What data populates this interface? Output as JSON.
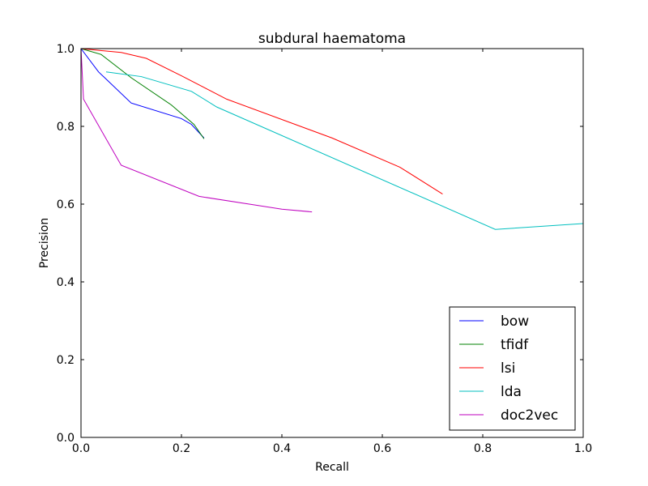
{
  "chart_data": {
    "type": "line",
    "title": "subdural haematoma",
    "xlabel": "Recall",
    "ylabel": "Precision",
    "xlim": [
      0.0,
      1.0
    ],
    "ylim": [
      0.0,
      1.0
    ],
    "xticks": [
      "0.0",
      "0.2",
      "0.4",
      "0.6",
      "0.8",
      "1.0"
    ],
    "yticks": [
      "0.0",
      "0.2",
      "0.4",
      "0.6",
      "0.8",
      "1.0"
    ],
    "grid": false,
    "legend_position": "lower-right",
    "series": [
      {
        "name": "bow",
        "color": "#0000ff",
        "x": [
          0.0,
          0.035,
          0.1,
          0.2,
          0.22,
          0.245
        ],
        "y": [
          1.0,
          0.94,
          0.86,
          0.82,
          0.805,
          0.77
        ]
      },
      {
        "name": "tfidf",
        "color": "#008000",
        "x": [
          0.0,
          0.04,
          0.1,
          0.18,
          0.225,
          0.245
        ],
        "y": [
          1.0,
          0.985,
          0.925,
          0.855,
          0.805,
          0.768
        ]
      },
      {
        "name": "lsi",
        "color": "#ff0000",
        "x": [
          0.0,
          0.08,
          0.13,
          0.2,
          0.29,
          0.5,
          0.635,
          0.72
        ],
        "y": [
          1.0,
          0.99,
          0.975,
          0.93,
          0.87,
          0.77,
          0.695,
          0.626
        ]
      },
      {
        "name": "lda",
        "color": "#00bfbf",
        "x": [
          0.05,
          0.12,
          0.22,
          0.27,
          0.825,
          1.0
        ],
        "y": [
          0.94,
          0.928,
          0.89,
          0.85,
          0.535,
          0.55
        ]
      },
      {
        "name": "doc2vec",
        "color": "#bf00bf",
        "x": [
          0.0,
          0.005,
          0.08,
          0.235,
          0.4,
          0.46
        ],
        "y": [
          1.0,
          0.87,
          0.7,
          0.62,
          0.587,
          0.58
        ]
      }
    ]
  }
}
